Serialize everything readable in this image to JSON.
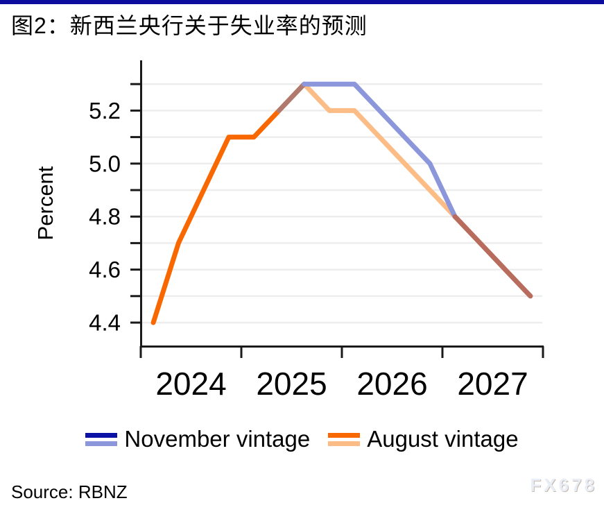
{
  "page": {
    "title": "图2：新西兰央行关于失业率的预测",
    "source": "Source: RBNZ",
    "watermark": "FX678",
    "top_bar_color": "#0C0C9E"
  },
  "legend": {
    "position": "bottom-center",
    "items": [
      {
        "label": "November vintage",
        "color_actual": "#0D12A6",
        "color_forecast": "#8C96DA"
      },
      {
        "label": "August vintage",
        "color_actual": "#F96800",
        "color_forecast": "#FBBC86"
      }
    ]
  },
  "chart_data": {
    "type": "line",
    "title": "图2：新西兰央行关于失业率的预测",
    "xlabel": "",
    "ylabel": "Percent",
    "x_unit": "quarterly",
    "x_range_years": [
      2024,
      2028
    ],
    "x_tick_positions_years": [
      2024,
      2025,
      2026,
      2027,
      2028
    ],
    "x_tick_labels": [
      "2024",
      "2025",
      "2026",
      "2027"
    ],
    "ylim": [
      4.3,
      5.35
    ],
    "yticks_all": [
      4.4,
      4.5,
      4.6,
      4.7,
      4.8,
      4.9,
      5.0,
      5.1,
      5.2,
      5.3
    ],
    "yticks_labeled": [
      "4.4",
      "4.6",
      "4.8",
      "5.0",
      "5.2"
    ],
    "grid": "horizontal",
    "grid_color": "#EDEDED",
    "series": [
      {
        "name": "August vintage",
        "quarters": [
          "2024Q1",
          "2024Q2",
          "2024Q3",
          "2024Q4",
          "2025Q1",
          "2025Q2",
          "2025Q3",
          "2025Q4",
          "2026Q1",
          "2026Q2",
          "2026Q3",
          "2026Q4",
          "2027Q1",
          "2027Q2",
          "2027Q3",
          "2027Q4"
        ],
        "values": [
          4.4,
          4.7,
          4.9,
          5.1,
          5.1,
          5.2,
          5.3,
          5.2,
          5.2,
          5.1,
          5.0,
          4.9,
          4.8,
          4.7,
          4.6,
          4.5
        ],
        "paint": [
          {
            "from": "2024Q1",
            "to": "2025Q2",
            "color": "#F96800",
            "meaning": "actuals"
          },
          {
            "from": "2025Q2",
            "to": "2027Q4",
            "color": "#FBBC86",
            "meaning": "forecast"
          }
        ]
      },
      {
        "name": "November vintage",
        "quarters": [
          "2025Q2",
          "2025Q3",
          "2025Q4",
          "2026Q1",
          "2026Q2",
          "2026Q3",
          "2026Q4",
          "2027Q1",
          "2027Q2",
          "2027Q3",
          "2027Q4"
        ],
        "values": [
          5.2,
          5.3,
          5.3,
          5.3,
          5.2,
          5.1,
          5.0,
          4.8,
          4.7,
          4.6,
          4.5
        ],
        "paint": [
          {
            "from": "2025Q2",
            "to": "2025Q3",
            "color": "#B0796D",
            "meaning": "overlap blend with August line"
          },
          {
            "from": "2025Q3",
            "to": "2027Q1",
            "color": "#8C96DA",
            "meaning": "forecast"
          },
          {
            "from": "2027Q1",
            "to": "2027Q4",
            "color": "#B76C5E",
            "meaning": "overlap blend with August line"
          }
        ]
      }
    ]
  }
}
